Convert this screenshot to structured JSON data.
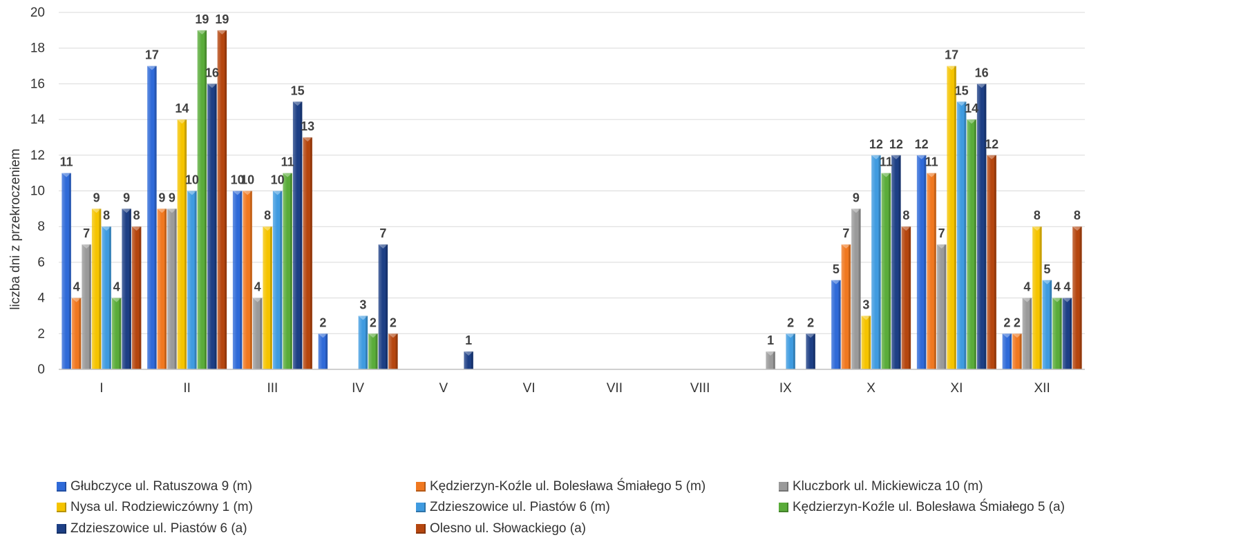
{
  "chart_data": {
    "type": "bar",
    "title": "",
    "xlabel": "",
    "ylabel": "liczba dni z przekroczeniem",
    "ylim": [
      0,
      20
    ],
    "yticks": [
      0,
      2,
      4,
      6,
      8,
      10,
      12,
      14,
      16,
      18,
      20
    ],
    "grid": true,
    "legend_position": "bottom",
    "categories": [
      "I",
      "II",
      "III",
      "IV",
      "V",
      "VI",
      "VII",
      "VIII",
      "IX",
      "X",
      "XI",
      "XII"
    ],
    "series": [
      {
        "name": "Głubczyce ul. Ratuszowa 9 (m)",
        "color": "#2f6ad8",
        "values": [
          11,
          17,
          10,
          2,
          null,
          null,
          null,
          null,
          null,
          5,
          12,
          2
        ]
      },
      {
        "name": "Kędzierzyn-Koźle ul. Bolesława Śmiałego 5 (m)",
        "color": "#f07820",
        "values": [
          4,
          9,
          10,
          null,
          null,
          null,
          null,
          null,
          null,
          7,
          11,
          2
        ]
      },
      {
        "name": "Kluczbork ul. Mickiewicza 10 (m)",
        "color": "#9a9a9a",
        "values": [
          7,
          9,
          4,
          null,
          null,
          null,
          null,
          null,
          1,
          9,
          7,
          4
        ]
      },
      {
        "name": "Nysa ul. Rodziewiczówny 1 (m)",
        "color": "#f5c400",
        "values": [
          9,
          14,
          8,
          null,
          null,
          null,
          null,
          null,
          null,
          3,
          17,
          8
        ]
      },
      {
        "name": "Zdzieszowice ul. Piastów 6 (m)",
        "color": "#3f9be0",
        "values": [
          8,
          10,
          10,
          3,
          null,
          null,
          null,
          null,
          2,
          12,
          15,
          5
        ]
      },
      {
        "name": "Kędzierzyn-Koźle ul. Bolesława Śmiałego 5 (a)",
        "color": "#5aac3a",
        "values": [
          4,
          19,
          11,
          2,
          null,
          null,
          null,
          null,
          null,
          11,
          14,
          4
        ]
      },
      {
        "name": "Zdzieszowice ul. Piastów 6 (a)",
        "color": "#1d3f85",
        "values": [
          9,
          16,
          15,
          7,
          1,
          null,
          null,
          null,
          2,
          12,
          16,
          4
        ]
      },
      {
        "name": "Olesno ul. Słowackiego (a)",
        "color": "#b5460f",
        "values": [
          8,
          19,
          13,
          2,
          null,
          null,
          null,
          null,
          null,
          8,
          12,
          8
        ]
      }
    ]
  }
}
